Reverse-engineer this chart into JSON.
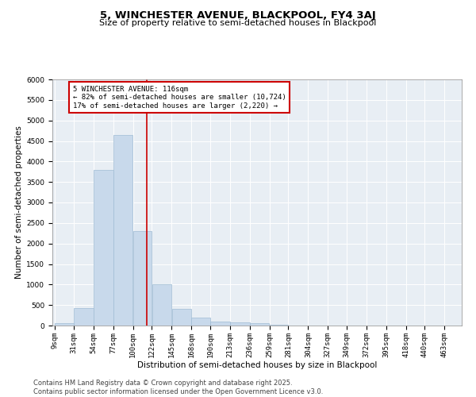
{
  "title": "5, WINCHESTER AVENUE, BLACKPOOL, FY4 3AJ",
  "subtitle": "Size of property relative to semi-detached houses in Blackpool",
  "xlabel": "Distribution of semi-detached houses by size in Blackpool",
  "ylabel": "Number of semi-detached properties",
  "footnote1": "Contains HM Land Registry data © Crown copyright and database right 2025.",
  "footnote2": "Contains public sector information licensed under the Open Government Licence v3.0.",
  "annotation_title": "5 WINCHESTER AVENUE: 116sqm",
  "annotation_line1": "← 82% of semi-detached houses are smaller (10,724)",
  "annotation_line2": "17% of semi-detached houses are larger (2,220) →",
  "property_size": 116,
  "bar_color": "#c8d9eb",
  "bar_edgecolor": "#a0bcd4",
  "vline_color": "#cc0000",
  "annotation_box_color": "#cc0000",
  "background_color": "#e8eef4",
  "categories": [
    "9sqm",
    "31sqm",
    "54sqm",
    "77sqm",
    "100sqm",
    "122sqm",
    "145sqm",
    "168sqm",
    "190sqm",
    "213sqm",
    "236sqm",
    "259sqm",
    "281sqm",
    "304sqm",
    "327sqm",
    "349sqm",
    "372sqm",
    "395sqm",
    "418sqm",
    "440sqm",
    "463sqm"
  ],
  "bin_edges": [
    9,
    31,
    54,
    77,
    100,
    122,
    145,
    168,
    190,
    213,
    236,
    259,
    281,
    304,
    327,
    349,
    372,
    395,
    418,
    440,
    463
  ],
  "bar_heights": [
    50,
    430,
    3800,
    4650,
    2300,
    1000,
    400,
    200,
    100,
    80,
    60,
    10,
    5,
    5,
    3,
    2,
    2,
    1,
    1,
    1,
    0
  ],
  "ylim": [
    0,
    6000
  ],
  "yticks": [
    0,
    500,
    1000,
    1500,
    2000,
    2500,
    3000,
    3500,
    4000,
    4500,
    5000,
    5500,
    6000
  ],
  "title_fontsize": 9.5,
  "subtitle_fontsize": 8,
  "axis_fontsize": 7.5,
  "tick_fontsize": 6.5,
  "footnote_fontsize": 6
}
